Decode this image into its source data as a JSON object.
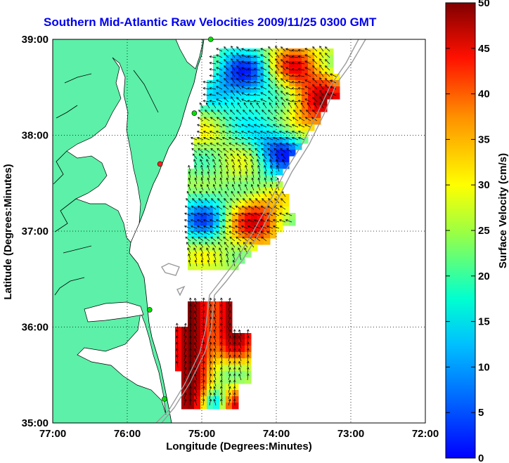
{
  "title": "Southern Mid-Atlantic Raw Velocities 2009/11/25 0300 GMT",
  "axes": {
    "xlabel": "Longitude (Degrees:Minutes)",
    "ylabel": "Latitude (Degrees:Minutes)",
    "xticks": [
      "77:00",
      "76:00",
      "75:00",
      "74:00",
      "73:00",
      "72:00"
    ],
    "yticks": [
      "39:00",
      "38:00",
      "37:00",
      "36:00",
      "35:00"
    ],
    "xrange_lon": [
      -77,
      -72
    ],
    "yrange_lat": [
      35,
      39
    ],
    "grid": "dotted"
  },
  "colorbar": {
    "label": "Surface Velocity (cm/s)",
    "ticks": [
      "50",
      "45",
      "40",
      "35",
      "30",
      "25",
      "20",
      "15",
      "10",
      "5",
      "0"
    ],
    "min": 0,
    "max": 50,
    "colormap": "jet"
  },
  "colors": {
    "land": "#5cf0a8",
    "water": "#ffffff",
    "title": "#0000ee",
    "bathymetry": "#9a9a9a",
    "station": "#00e000",
    "station_alt": "#ff2020"
  },
  "stations": [
    {
      "lon": -74.88,
      "lat": 39.0,
      "status": "ok"
    },
    {
      "lon": -75.1,
      "lat": 38.23,
      "status": "ok"
    },
    {
      "lon": -75.56,
      "lat": 37.7,
      "status": "alt"
    },
    {
      "lon": -75.7,
      "lat": 36.18,
      "status": "ok"
    },
    {
      "lon": -75.5,
      "lat": 35.25,
      "status": "ok"
    }
  ]
}
